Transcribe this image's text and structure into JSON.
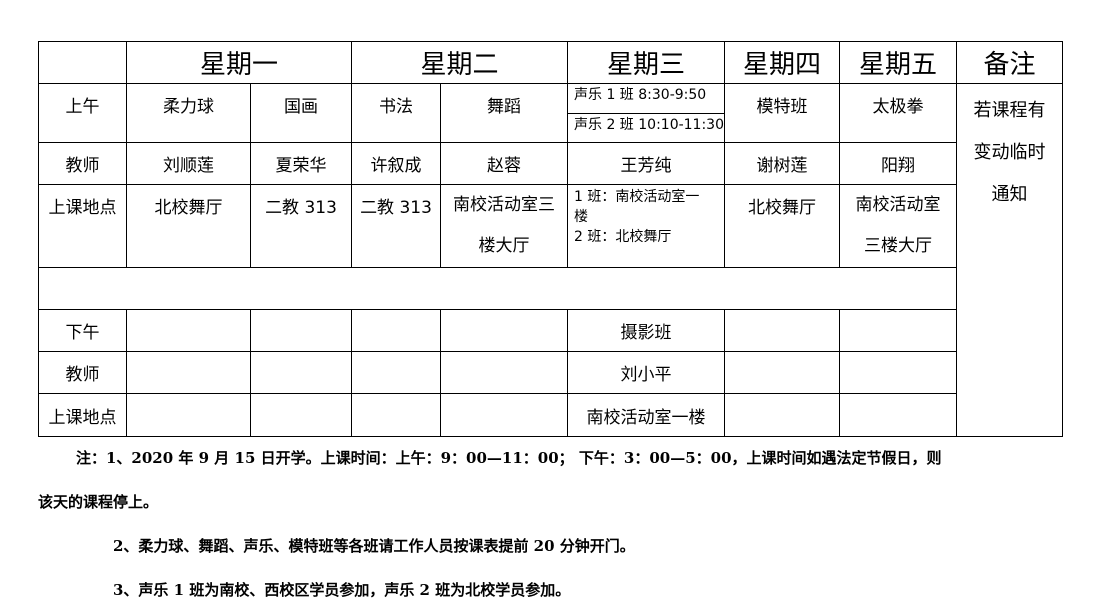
{
  "header": [
    "",
    "星期一",
    "星期二",
    "星期三",
    "星期四",
    "星期五",
    "备注"
  ],
  "morning": {
    "label": "上午",
    "courses": [
      "柔力球",
      "国画",
      "书法",
      "舞蹈"
    ],
    "singing": [
      "声乐 1 班 8:30-9:50",
      "声乐 2 班 10:10-11:30"
    ],
    "thu": "模特班",
    "fri": "太极拳"
  },
  "remark": [
    "若课程有",
    "变动临时",
    "通知"
  ],
  "teacher_am": {
    "label": "教师",
    "values": [
      "刘顺莲",
      "夏荣华",
      "许叙成",
      "赵蓉",
      "王芳纯",
      "谢树莲",
      "阳翔"
    ]
  },
  "location_am": {
    "label": "上课地点",
    "mon1": "北校舞厅",
    "mon2": "二教 313",
    "tue1": "二教 313",
    "tue2": [
      "南校活动室三",
      "楼大厅"
    ],
    "wed": [
      "1 班：南校活动室一",
      "楼",
      "2 班：北校舞厅"
    ],
    "thu": "北校舞厅",
    "fri": [
      "南校活动室",
      "三楼大厅"
    ]
  },
  "afternoon": {
    "label": "下午",
    "wed": "摄影班"
  },
  "teacher_pm": {
    "label": "教师",
    "wed": "刘小平"
  },
  "location_pm": {
    "label": "上课地点",
    "wed": "南校活动室一楼"
  },
  "notes": [
    "注：1、2020 年 9 月 15 日开学。上课时间：上午：9：00—11：00；  下午：3：00—5：00，上课时间如遇法定节假日，则",
    "该天的课程停上。",
    "2、柔力球、舞蹈、声乐、模特班等各班请工作人员按课表提前 20 分钟开门。",
    "3、声乐 1 班为南校、西校区学员参加，声乐 2 班为北校学员参加。"
  ]
}
